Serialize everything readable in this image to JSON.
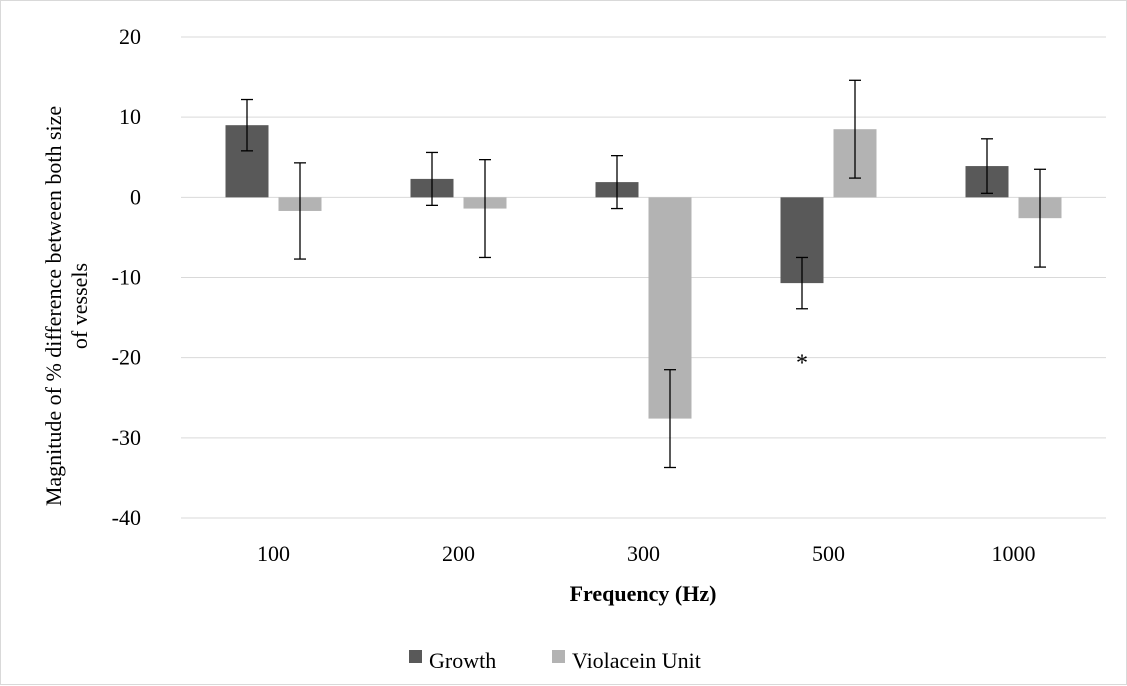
{
  "chart_data": {
    "type": "bar",
    "title": "",
    "xlabel": "Frequency  (Hz)",
    "ylabel_lines": [
      "Magnitude  of % difference  between both size",
      "of vessels"
    ],
    "categories": [
      "100",
      "200",
      "300",
      "500",
      "1000"
    ],
    "ylim": [
      -40,
      20
    ],
    "yticks": [
      20,
      10,
      0,
      -10,
      -20,
      -30,
      -40
    ],
    "grid": true,
    "legend_position": "bottom",
    "series": [
      {
        "name": "Growth",
        "color": "#595959",
        "values": [
          9.0,
          2.3,
          1.9,
          -10.7,
          3.9
        ],
        "error": [
          3.2,
          3.3,
          3.3,
          3.2,
          3.4
        ]
      },
      {
        "name": "Violacein Unit",
        "color": "#b3b3b3",
        "values": [
          -1.7,
          -1.4,
          -27.6,
          8.5,
          -2.6
        ],
        "error": [
          6.0,
          6.1,
          6.1,
          6.1,
          6.1
        ]
      }
    ],
    "annotations": [
      {
        "text": "*",
        "category": "500",
        "series": "Growth",
        "y": -20
      }
    ]
  }
}
